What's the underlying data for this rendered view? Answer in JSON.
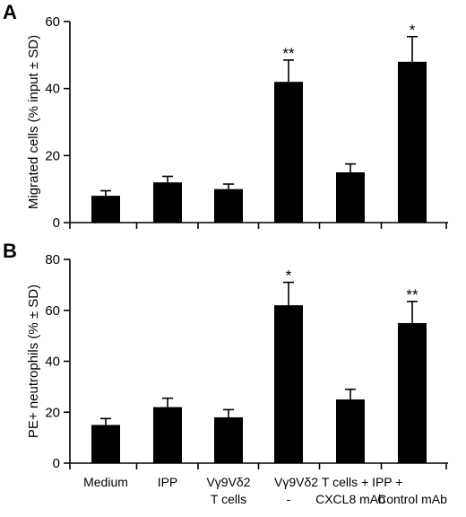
{
  "chart_data": [
    {
      "type": "bar",
      "panel_label": "A",
      "ylabel": "Migrated cells (% input ± SD)",
      "ylim": [
        0,
        60
      ],
      "yticks": [
        0,
        20,
        40,
        60
      ],
      "categories": [
        "Medium",
        "IPP",
        "Vγ9Vδ2 T cells",
        "-",
        "CXCL8 mAb",
        "Control mAb"
      ],
      "values": [
        8,
        12,
        10,
        42,
        15,
        48
      ],
      "errors": [
        1.5,
        1.8,
        1.5,
        6.5,
        2.5,
        7.5
      ],
      "significance": [
        "",
        "",
        "",
        "**",
        "",
        "*"
      ],
      "grid": false,
      "legend": "none"
    },
    {
      "type": "bar",
      "panel_label": "B",
      "ylabel": "PE+ neutrophils (% ± SD)",
      "ylim": [
        0,
        80
      ],
      "yticks": [
        0,
        20,
        40,
        60,
        80
      ],
      "categories": [
        "Medium",
        "IPP",
        "Vγ9Vδ2 T cells",
        "-",
        "CXCL8 mAb",
        "Control mAb"
      ],
      "values": [
        15,
        22,
        18,
        62,
        25,
        55
      ],
      "errors": [
        2.5,
        3.5,
        3,
        9,
        4,
        8.5
      ],
      "significance": [
        "",
        "",
        "",
        "*",
        "",
        "**"
      ],
      "grid": false,
      "legend": "none"
    }
  ],
  "xaxis": {
    "labels_line1": [
      "Medium",
      "IPP",
      "Vγ9Vδ2",
      "Vγ9Vδ2 T cells + IPP +"
    ],
    "labels_line2": [
      "",
      "",
      "T cells",
      "-",
      "CXCL8 mAb",
      "Control mAb"
    ]
  }
}
